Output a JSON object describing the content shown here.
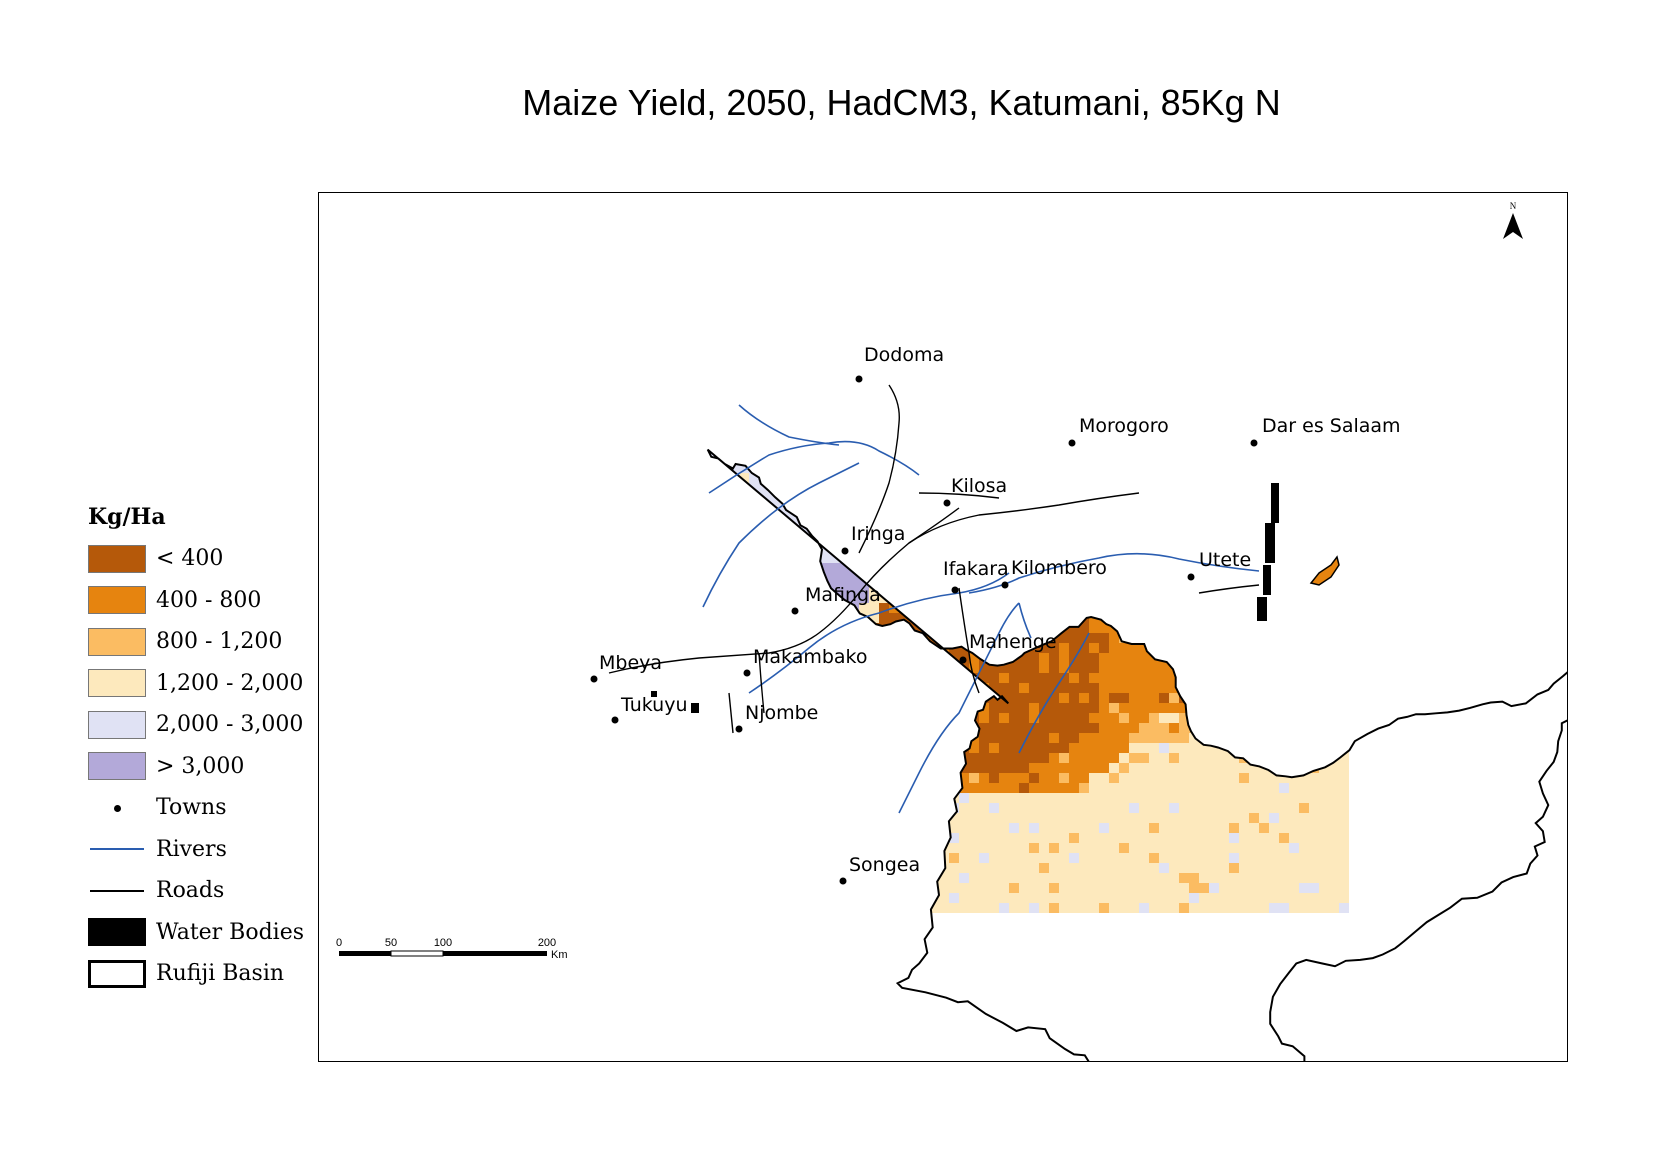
{
  "title": "Maize Yield, 2050, HadCM3, Katumani, 85Kg N",
  "legend": {
    "title": "Kg/Ha",
    "classes": [
      {
        "label": "< 400",
        "color": "#b5590a"
      },
      {
        "label": "400 - 800",
        "color": "#e6840f"
      },
      {
        "label": "800 - 1,200",
        "color": "#fbbc62"
      },
      {
        "label": "1,200 - 2,000",
        "color": "#fde9bd"
      },
      {
        "label": "2,000 - 3,000",
        "color": "#e0e2f4"
      },
      {
        "label": "> 3,000",
        "color": "#b3a9d9"
      }
    ],
    "towns_label": "Towns",
    "rivers_label": "Rivers",
    "roads_label": "Roads",
    "water_label": "Water Bodies",
    "basin_label": "Rufiji Basin"
  },
  "towns": [
    "Dodoma",
    "Morogoro",
    "Dar es Salaam",
    "Kilosa",
    "Iringa",
    "Ifakara",
    "Kilombero",
    "Utete",
    "Mafinga",
    "Mahenge",
    "Mbeya",
    "Makambako",
    "Tukuyu",
    "Njombe",
    "Songea"
  ],
  "scalebar": {
    "ticks": [
      "0",
      "50",
      "100",
      "200"
    ],
    "unit": "Km"
  },
  "north_arrow": {
    "label": "N",
    "icon": "north-arrow-icon"
  },
  "colors": {
    "rivers": "#2a5db0",
    "roads": "#000000",
    "water": "#000000",
    "basin_outline": "#000000"
  }
}
